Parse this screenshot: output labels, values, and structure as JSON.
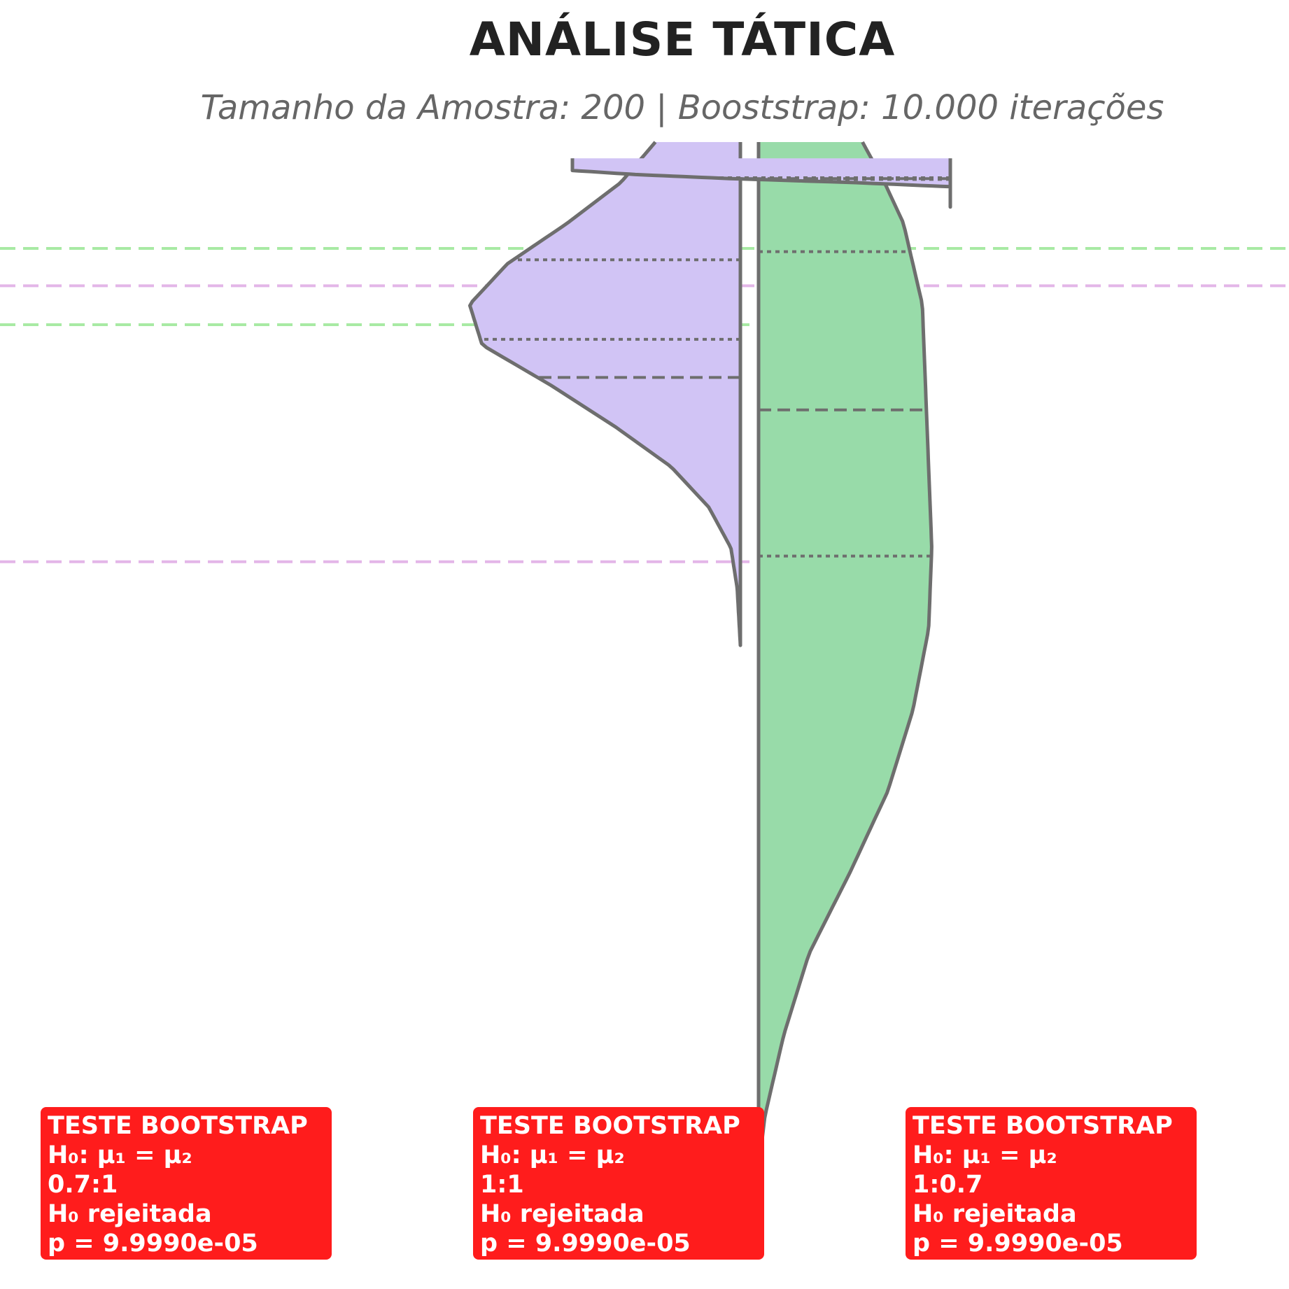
{
  "header": {
    "title": "ANÁLISE TÁTICA",
    "subtitle": "Tamanho da Amostra: 200 | Booststrap: 10.000 iterações"
  },
  "colors": {
    "violin_left": "#d1c4f5",
    "violin_right": "#98dba9",
    "outline": "#6e6e6e",
    "ref_line_purple": "#e3b6e8",
    "ref_line_green": "#a8eaa4",
    "stat_box": "#ff1c1c"
  },
  "chart_data": {
    "type": "violin",
    "split": true,
    "grid": false,
    "ylim": [
      0,
      1
    ],
    "groups": [
      {
        "ratio": "0.7:1",
        "left": {
          "range": [
            0.38,
            1.0
          ],
          "quartiles": [
            0.855,
            0.71,
            0.757
          ],
          "density": [
            [
              0.38,
              0.0
            ],
            [
              0.45,
              0.01
            ],
            [
              0.5,
              0.03
            ],
            [
              0.55,
              0.1
            ],
            [
              0.6,
              0.22
            ],
            [
              0.65,
              0.4
            ],
            [
              0.7,
              0.6
            ],
            [
              0.75,
              0.82
            ],
            [
              0.8,
              0.86
            ],
            [
              0.85,
              0.74
            ],
            [
              0.9,
              0.55
            ],
            [
              0.95,
              0.38
            ],
            [
              1.0,
              0.27
            ]
          ]
        },
        "right": {
          "range": [
            -0.3,
            1.0
          ],
          "quartiles": [
            0.865,
            0.67,
            0.49
          ],
          "density": [
            [
              -0.3,
              0.0
            ],
            [
              -0.25,
              0.005
            ],
            [
              -0.2,
              0.02
            ],
            [
              -0.1,
              0.08
            ],
            [
              0.0,
              0.16
            ],
            [
              0.1,
              0.29
            ],
            [
              0.2,
              0.41
            ],
            [
              0.3,
              0.49
            ],
            [
              0.4,
              0.54
            ],
            [
              0.5,
              0.55
            ],
            [
              0.6,
              0.54
            ],
            [
              0.7,
              0.53
            ],
            [
              0.8,
              0.52
            ],
            [
              0.9,
              0.46
            ],
            [
              0.95,
              0.4
            ],
            [
              1.0,
              0.33
            ]
          ]
        },
        "ref_lines_left": [
          0.823,
          0.483
        ],
        "ref_lines_right": [
          0.869,
          0.775
        ]
      },
      {
        "ratio": "1:1",
        "left": {
          "range": [
            0.92,
            0.98
          ],
          "quartiles": [
            0.954,
            0.955,
            0.956
          ],
          "density": [
            [
              0.945,
              0.0
            ],
            [
              0.95,
              0.3
            ],
            [
              0.955,
              0.7
            ],
            [
              0.96,
              1.0
            ],
            [
              0.965,
              1.2
            ]
          ]
        },
        "right": null
      }
    ],
    "tests": [
      {
        "title": "TESTE BOOTSTRAP",
        "hypothesis": "H₀: μ₁ = μ₂",
        "ratio": "0.7:1",
        "result": "H₀ rejeitada",
        "p_value": "p = 9.9990e-05"
      },
      {
        "title": "TESTE BOOTSTRAP",
        "hypothesis": "H₀: μ₁ = μ₂",
        "ratio": "1:1",
        "result": "H₀ rejeitada",
        "p_value": "p = 9.9990e-05"
      },
      {
        "title": "TESTE BOOTSTRAP",
        "hypothesis": "H₀: μ₁ = μ₂",
        "ratio": "1:0.7",
        "result": "H₀ rejeitada",
        "p_value": "p = 9.9990e-05"
      }
    ]
  }
}
